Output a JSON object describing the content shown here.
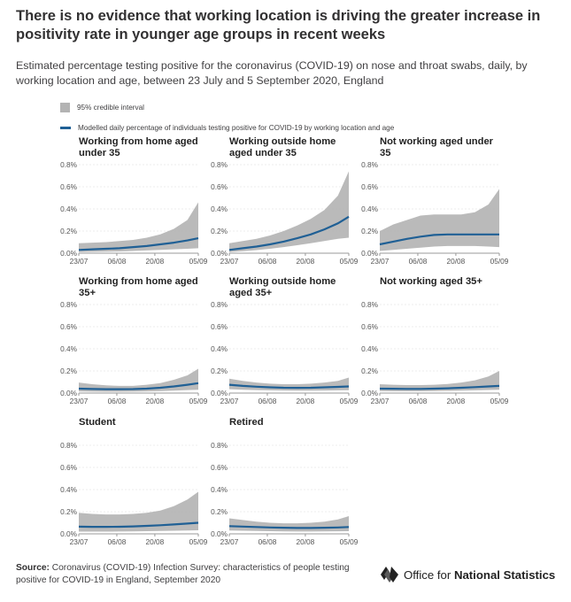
{
  "header": {
    "title": "There is no evidence that working location is driving the greater increase in positivity rate in younger age groups in recent weeks",
    "subtitle": "Estimated percentage testing positive for the coronavirus (COVID-19) on nose and throat swabs, daily, by working location and age, between 23 July and 5 September 2020, England"
  },
  "legend": {
    "interval_label": "95% credible interval",
    "line_label": "Modelled daily percentage of individuals testing positive for COVID-19 by working location and age"
  },
  "colors": {
    "line": "#206095",
    "band": "#b3b3b3",
    "axis": "#bfbfbf",
    "baseline": "#999999"
  },
  "chart_data": {
    "type": "line",
    "x_ticks": [
      "23/07",
      "06/08",
      "20/08",
      "05/09"
    ],
    "x_tick_days": [
      0,
      14,
      28,
      44
    ],
    "y_ticks": [
      "0.0%",
      "0.2%",
      "0.4%",
      "0.6%",
      "0.8%"
    ],
    "ylim": [
      0,
      0.8
    ],
    "x_days": [
      0,
      5,
      10,
      15,
      20,
      25,
      30,
      35,
      40,
      44
    ],
    "panels": [
      {
        "title": "Working from home aged under 35",
        "values": [
          0.03,
          0.035,
          0.04,
          0.045,
          0.055,
          0.065,
          0.08,
          0.095,
          0.115,
          0.135
        ],
        "lower": [
          0.01,
          0.012,
          0.014,
          0.016,
          0.02,
          0.025,
          0.03,
          0.035,
          0.04,
          0.045
        ],
        "upper": [
          0.09,
          0.095,
          0.1,
          0.11,
          0.12,
          0.14,
          0.17,
          0.22,
          0.3,
          0.46
        ]
      },
      {
        "title": "Working outside home aged under 35",
        "values": [
          0.03,
          0.045,
          0.06,
          0.08,
          0.105,
          0.135,
          0.17,
          0.215,
          0.27,
          0.33
        ],
        "lower": [
          0.01,
          0.018,
          0.028,
          0.04,
          0.055,
          0.072,
          0.09,
          0.11,
          0.13,
          0.14
        ],
        "upper": [
          0.09,
          0.11,
          0.13,
          0.16,
          0.2,
          0.25,
          0.31,
          0.39,
          0.52,
          0.74
        ]
      },
      {
        "title": "Not working aged under 35",
        "values": [
          0.08,
          0.105,
          0.13,
          0.15,
          0.165,
          0.17,
          0.17,
          0.17,
          0.17,
          0.17
        ],
        "lower": [
          0.02,
          0.03,
          0.04,
          0.05,
          0.06,
          0.065,
          0.065,
          0.065,
          0.06,
          0.055
        ],
        "upper": [
          0.2,
          0.26,
          0.3,
          0.34,
          0.35,
          0.35,
          0.35,
          0.37,
          0.44,
          0.58
        ]
      },
      {
        "title": "Working from home aged 35+",
        "values": [
          0.04,
          0.037,
          0.035,
          0.035,
          0.036,
          0.04,
          0.048,
          0.06,
          0.075,
          0.09
        ],
        "lower": [
          0.015,
          0.013,
          0.012,
          0.012,
          0.013,
          0.015,
          0.018,
          0.022,
          0.027,
          0.03
        ],
        "upper": [
          0.095,
          0.08,
          0.07,
          0.065,
          0.065,
          0.075,
          0.09,
          0.12,
          0.16,
          0.22
        ]
      },
      {
        "title": "Working outside home aged 35+",
        "values": [
          0.075,
          0.065,
          0.058,
          0.052,
          0.048,
          0.047,
          0.048,
          0.052,
          0.056,
          0.06
        ],
        "lower": [
          0.035,
          0.03,
          0.027,
          0.025,
          0.023,
          0.022,
          0.022,
          0.023,
          0.025,
          0.026
        ],
        "upper": [
          0.13,
          0.11,
          0.095,
          0.085,
          0.08,
          0.08,
          0.085,
          0.095,
          0.11,
          0.14
        ]
      },
      {
        "title": "Not working aged 35+",
        "values": [
          0.04,
          0.039,
          0.038,
          0.038,
          0.04,
          0.043,
          0.048,
          0.054,
          0.06,
          0.065
        ],
        "lower": [
          0.018,
          0.017,
          0.017,
          0.017,
          0.018,
          0.02,
          0.022,
          0.025,
          0.028,
          0.03
        ],
        "upper": [
          0.08,
          0.075,
          0.072,
          0.072,
          0.075,
          0.082,
          0.095,
          0.115,
          0.15,
          0.2
        ]
      },
      {
        "title": "Student",
        "values": [
          0.065,
          0.063,
          0.063,
          0.064,
          0.067,
          0.072,
          0.078,
          0.085,
          0.093,
          0.1
        ],
        "lower": [
          0.02,
          0.02,
          0.02,
          0.021,
          0.022,
          0.024,
          0.026,
          0.028,
          0.03,
          0.032
        ],
        "upper": [
          0.19,
          0.18,
          0.175,
          0.175,
          0.18,
          0.19,
          0.21,
          0.25,
          0.31,
          0.38
        ]
      },
      {
        "title": "Retired",
        "values": [
          0.07,
          0.066,
          0.062,
          0.058,
          0.055,
          0.053,
          0.053,
          0.055,
          0.058,
          0.062
        ],
        "lower": [
          0.03,
          0.028,
          0.026,
          0.024,
          0.022,
          0.021,
          0.021,
          0.022,
          0.023,
          0.024
        ],
        "upper": [
          0.14,
          0.125,
          0.11,
          0.1,
          0.095,
          0.095,
          0.1,
          0.11,
          0.13,
          0.16
        ]
      }
    ]
  },
  "footer": {
    "source_label": "Source:",
    "source_text": "Coronavirus (COVID-19) Infection Survey: characteristics of people testing positive for COVID-19 in England, September 2020",
    "logo_text_regular": "Office for ",
    "logo_text_bold": "National Statistics"
  }
}
